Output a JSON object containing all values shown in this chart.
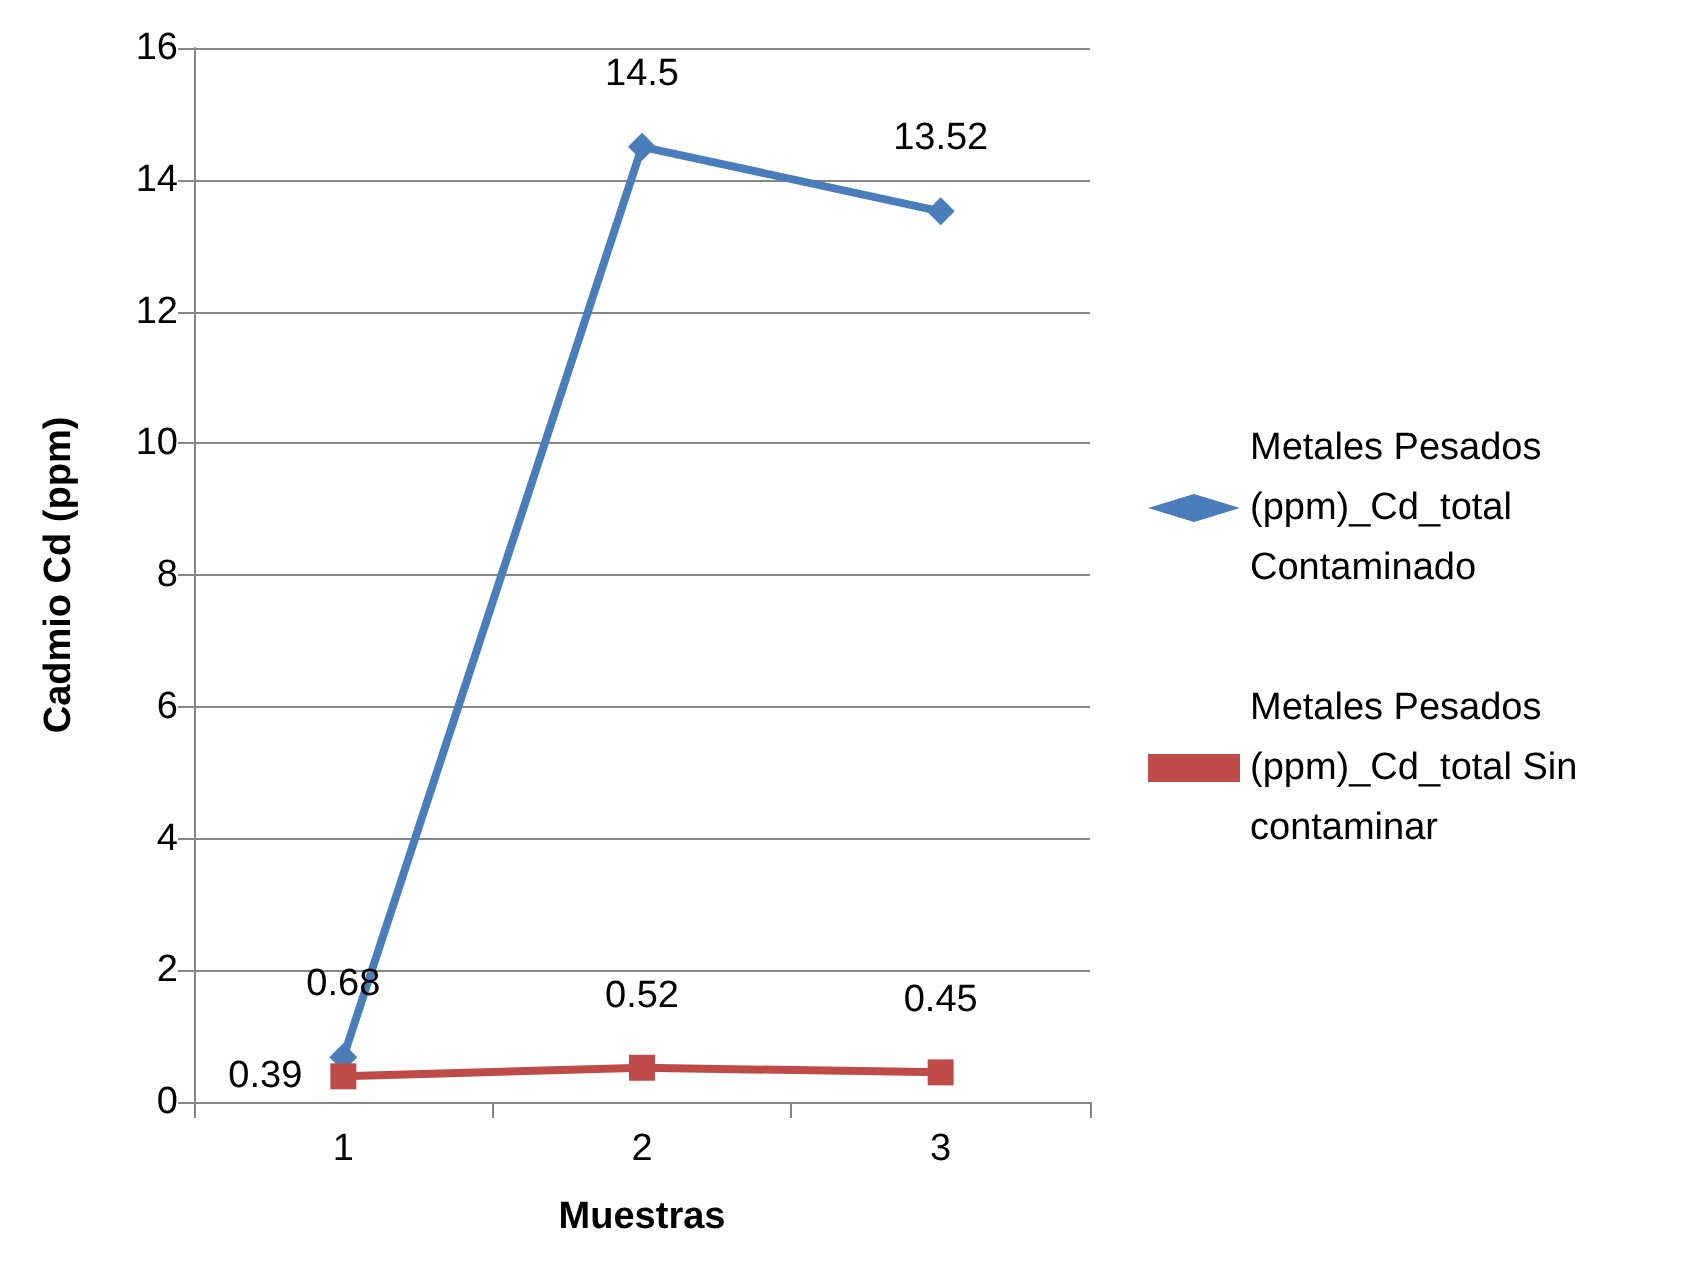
{
  "chart_data": {
    "type": "line",
    "xlabel": "Muestras",
    "ylabel": "Cadmio Cd (ppm)",
    "categories": [
      "1",
      "2",
      "3"
    ],
    "series": [
      {
        "name": "Metales Pesados (ppm)_Cd_total Contaminado",
        "color": "#4a7ebb",
        "marker": "diamond",
        "values": [
          0.68,
          14.5,
          13.52
        ]
      },
      {
        "name": "Metales Pesados (ppm)_Cd_total Sin contaminar",
        "color": "#be4b48",
        "marker": "square",
        "values": [
          0.39,
          0.52,
          0.45
        ]
      }
    ],
    "ylim": [
      0,
      16
    ],
    "yticks": [
      0,
      2,
      4,
      6,
      8,
      10,
      12,
      14,
      16
    ],
    "grid": "y",
    "legend": "right",
    "data_labels": true,
    "line_style": "solid"
  }
}
